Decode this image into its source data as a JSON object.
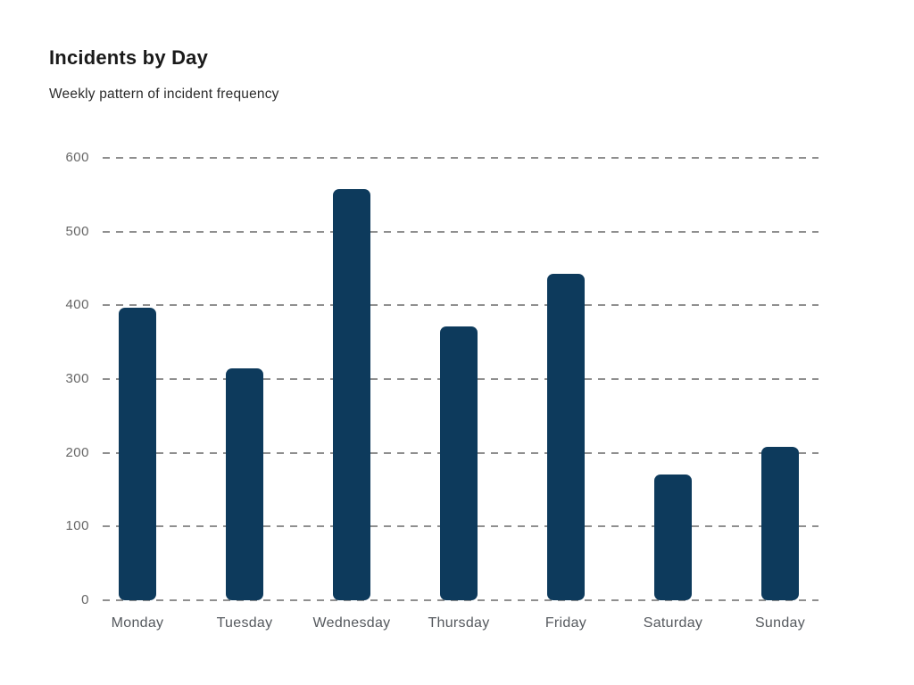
{
  "page": {
    "title": "Incidents by Day",
    "subtitle": "Weekly pattern of incident frequency"
  },
  "chart_data": {
    "type": "bar",
    "title": "Incidents by Day",
    "subtitle": "Weekly pattern of incident frequency",
    "categories": [
      "Monday",
      "Tuesday",
      "Wednesday",
      "Thursday",
      "Friday",
      "Saturday",
      "Sunday"
    ],
    "values": [
      397,
      314,
      558,
      371,
      443,
      171,
      208
    ],
    "xlabel": "",
    "ylabel": "",
    "ylim": [
      0,
      600
    ],
    "yticks": [
      0,
      100,
      200,
      300,
      400,
      500,
      600
    ],
    "grid": "horizontal-dashed",
    "legend_position": "none",
    "colors": {
      "bar": "#0d3a5c",
      "gridline": "#8f8f8f",
      "y_tick_label": "#666666",
      "x_tick_label": "#55595e",
      "title": "#1a1a1a",
      "subtitle": "#2b2b2b",
      "background": "#ffffff"
    }
  }
}
